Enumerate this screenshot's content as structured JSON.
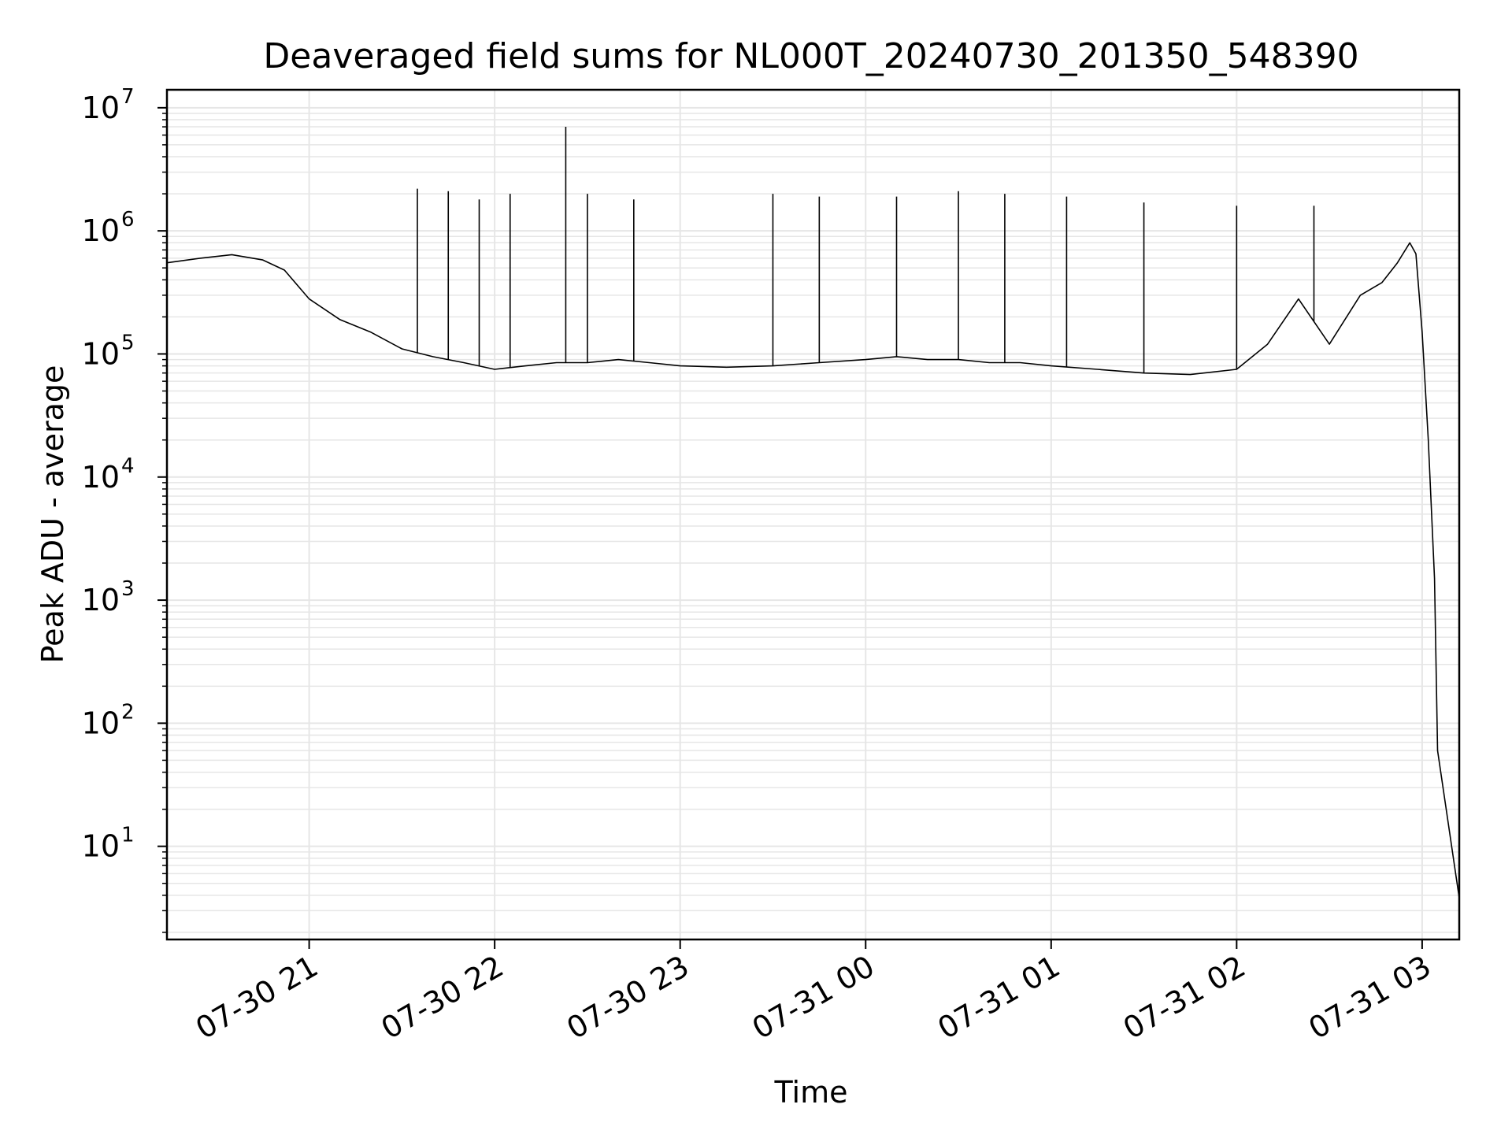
{
  "chart_data": {
    "type": "line",
    "title": "Deaveraged field sums for NL000T_20240730_201350_548390",
    "xlabel": "Time",
    "ylabel": "Peak ADU - average",
    "yscale": "log",
    "ylim": [
      1.75,
      14000000
    ],
    "xlim": [
      "07-30 20:14",
      "07-31 03:12"
    ],
    "grid": true,
    "line_color": "#000000",
    "grid_color": "#e6e6e6",
    "x_ticks": [
      "07-30 21",
      "07-30 22",
      "07-30 23",
      "07-31 00",
      "07-31 01",
      "07-31 02",
      "07-31 03"
    ],
    "y_ticks": [
      {
        "base": "10",
        "exp": "1"
      },
      {
        "base": "10",
        "exp": "2"
      },
      {
        "base": "10",
        "exp": "3"
      },
      {
        "base": "10",
        "exp": "4"
      },
      {
        "base": "10",
        "exp": "5"
      },
      {
        "base": "10",
        "exp": "6"
      },
      {
        "base": "10",
        "exp": "7"
      }
    ],
    "series": [
      {
        "x": [
          "07-30 20:14",
          "07-30 20:25",
          "07-30 20:35",
          "07-30 20:45",
          "07-30 20:52",
          "07-30 21:00",
          "07-30 21:10",
          "07-30 21:20",
          "07-30 21:30",
          "07-30 21:40",
          "07-30 21:50",
          "07-30 22:00",
          "07-30 22:10",
          "07-30 22:20",
          "07-30 22:30",
          "07-30 22:40",
          "07-30 22:50",
          "07-30 23:00",
          "07-30 23:15",
          "07-30 23:30",
          "07-30 23:45",
          "07-31 00:00",
          "07-31 00:10",
          "07-31 00:20",
          "07-31 00:30",
          "07-31 00:40",
          "07-31 00:50",
          "07-31 01:00",
          "07-31 01:15",
          "07-31 01:30",
          "07-31 01:45",
          "07-31 02:00",
          "07-31 02:10",
          "07-31 02:20",
          "07-31 02:30",
          "07-31 02:40",
          "07-31 02:47",
          "07-31 02:52",
          "07-31 02:56",
          "07-31 02:58",
          "07-31 03:00",
          "07-31 03:02",
          "07-31 03:04",
          "07-31 03:05",
          "07-31 03:12"
        ],
        "y": [
          550000,
          600000,
          640000,
          580000,
          480000,
          280000,
          190000,
          150000,
          110000,
          95000,
          85000,
          75000,
          80000,
          85000,
          85000,
          90000,
          85000,
          80000,
          78000,
          80000,
          85000,
          90000,
          95000,
          90000,
          90000,
          85000,
          85000,
          80000,
          75000,
          70000,
          68000,
          75000,
          120000,
          280000,
          120000,
          300000,
          380000,
          550000,
          800000,
          650000,
          150000,
          20000,
          1500,
          60,
          3.8
        ]
      }
    ],
    "spikes": [
      {
        "x": "07-30 21:35",
        "y": 2200000
      },
      {
        "x": "07-30 21:45",
        "y": 2100000
      },
      {
        "x": "07-30 21:55",
        "y": 1800000
      },
      {
        "x": "07-30 22:05",
        "y": 2000000
      },
      {
        "x": "07-30 22:23",
        "y": 7000000
      },
      {
        "x": "07-30 22:30",
        "y": 2000000
      },
      {
        "x": "07-30 22:45",
        "y": 1800000
      },
      {
        "x": "07-30 23:30",
        "y": 2000000
      },
      {
        "x": "07-30 23:45",
        "y": 1900000
      },
      {
        "x": "07-31 00:10",
        "y": 1900000
      },
      {
        "x": "07-31 00:30",
        "y": 2100000
      },
      {
        "x": "07-31 00:45",
        "y": 2000000
      },
      {
        "x": "07-31 01:05",
        "y": 1900000
      },
      {
        "x": "07-31 01:30",
        "y": 1700000
      },
      {
        "x": "07-31 02:00",
        "y": 1600000
      },
      {
        "x": "07-31 02:25",
        "y": 1600000
      }
    ]
  }
}
